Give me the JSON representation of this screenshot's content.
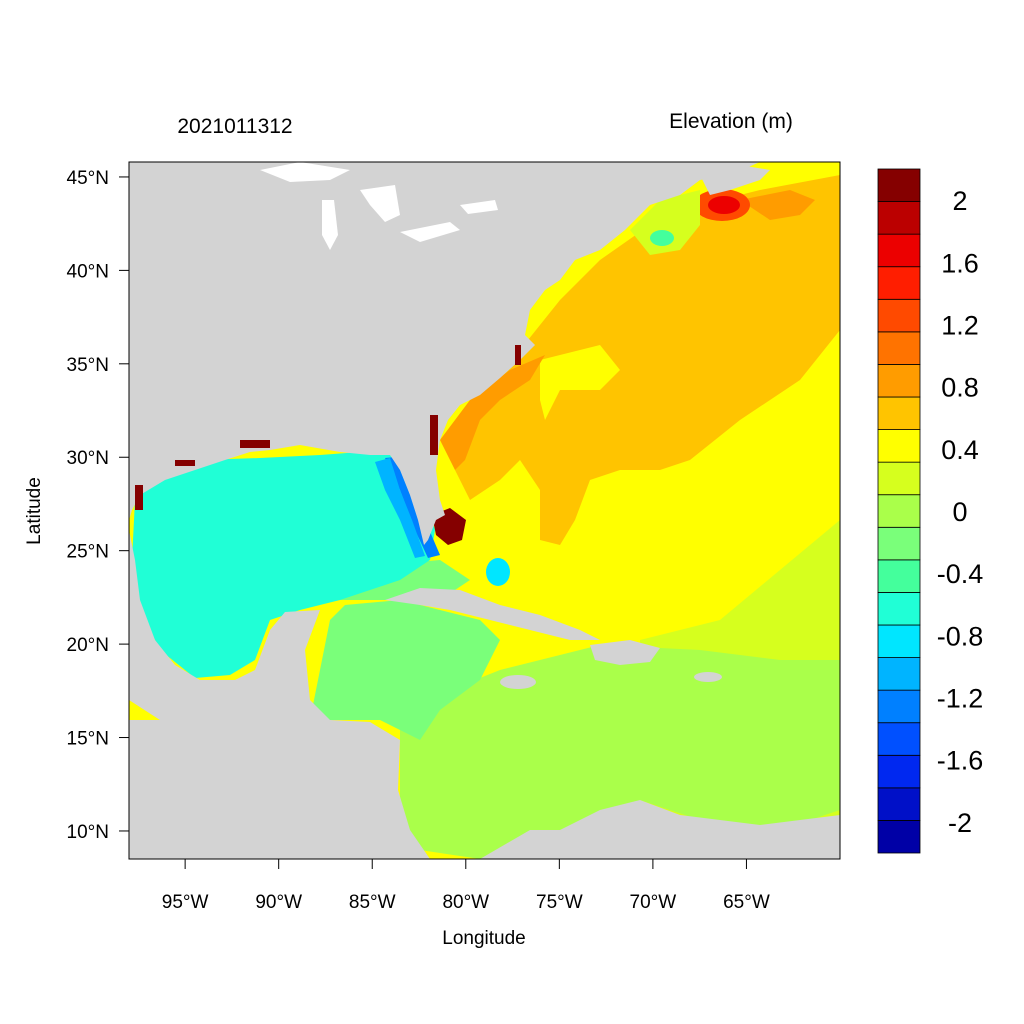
{
  "header": {
    "left_title": "2021011312",
    "right_title": "Elevation (m)"
  },
  "axes": {
    "xlabel": "Longitude",
    "ylabel": "Latitude",
    "x_ticks": [
      {
        "value": -95,
        "label": "95°W"
      },
      {
        "value": -90,
        "label": "90°W"
      },
      {
        "value": -85,
        "label": "85°W"
      },
      {
        "value": -80,
        "label": "80°W"
      },
      {
        "value": -75,
        "label": "75°W"
      },
      {
        "value": -70,
        "label": "70°W"
      },
      {
        "value": -65,
        "label": "65°W"
      }
    ],
    "y_ticks": [
      {
        "value": 45,
        "label": "45°N"
      },
      {
        "value": 40,
        "label": "40°N"
      },
      {
        "value": 35,
        "label": "35°N"
      },
      {
        "value": 30,
        "label": "30°N"
      },
      {
        "value": 25,
        "label": "25°N"
      },
      {
        "value": 20,
        "label": "20°N"
      },
      {
        "value": 15,
        "label": "15°N"
      },
      {
        "value": 10,
        "label": "10°N"
      }
    ],
    "xlim": [
      -98.0,
      -60.0
    ],
    "ylim": [
      8.5,
      45.8
    ]
  },
  "colorbar": {
    "levels_bottom_to_top": [
      {
        "color": "#0000a6"
      },
      {
        "color": "#0010c8"
      },
      {
        "color": "#0028f0"
      },
      {
        "color": "#0050ff"
      },
      {
        "color": "#0080ff"
      },
      {
        "color": "#00b4ff"
      },
      {
        "color": "#00e6ff"
      },
      {
        "color": "#20ffd6"
      },
      {
        "color": "#44ff9c"
      },
      {
        "color": "#7aff7a"
      },
      {
        "color": "#aaff4a"
      },
      {
        "color": "#d6ff1e"
      },
      {
        "color": "#ffff00"
      },
      {
        "color": "#ffc400"
      },
      {
        "color": "#ff9c00"
      },
      {
        "color": "#ff7300"
      },
      {
        "color": "#ff4a00"
      },
      {
        "color": "#ff1e00"
      },
      {
        "color": "#ec0000"
      },
      {
        "color": "#bb0000"
      },
      {
        "color": "#850000"
      }
    ],
    "tick_labels": [
      {
        "value": 2,
        "label": "2"
      },
      {
        "value": 1.6,
        "label": "1.6"
      },
      {
        "value": 1.2,
        "label": "1.2"
      },
      {
        "value": 0.8,
        "label": "0.8"
      },
      {
        "value": 0.4,
        "label": "0.4"
      },
      {
        "value": 0,
        "label": "0"
      },
      {
        "value": -0.4,
        "label": "-0.4"
      },
      {
        "value": -0.8,
        "label": "-0.8"
      },
      {
        "value": -1.2,
        "label": "-1.2"
      },
      {
        "value": -1.6,
        "label": "-1.6"
      },
      {
        "value": -2,
        "label": "-2"
      }
    ]
  },
  "colors": {
    "land": "#d3d3d3",
    "lakes": "#ffffff",
    "frame": "#000000"
  }
}
